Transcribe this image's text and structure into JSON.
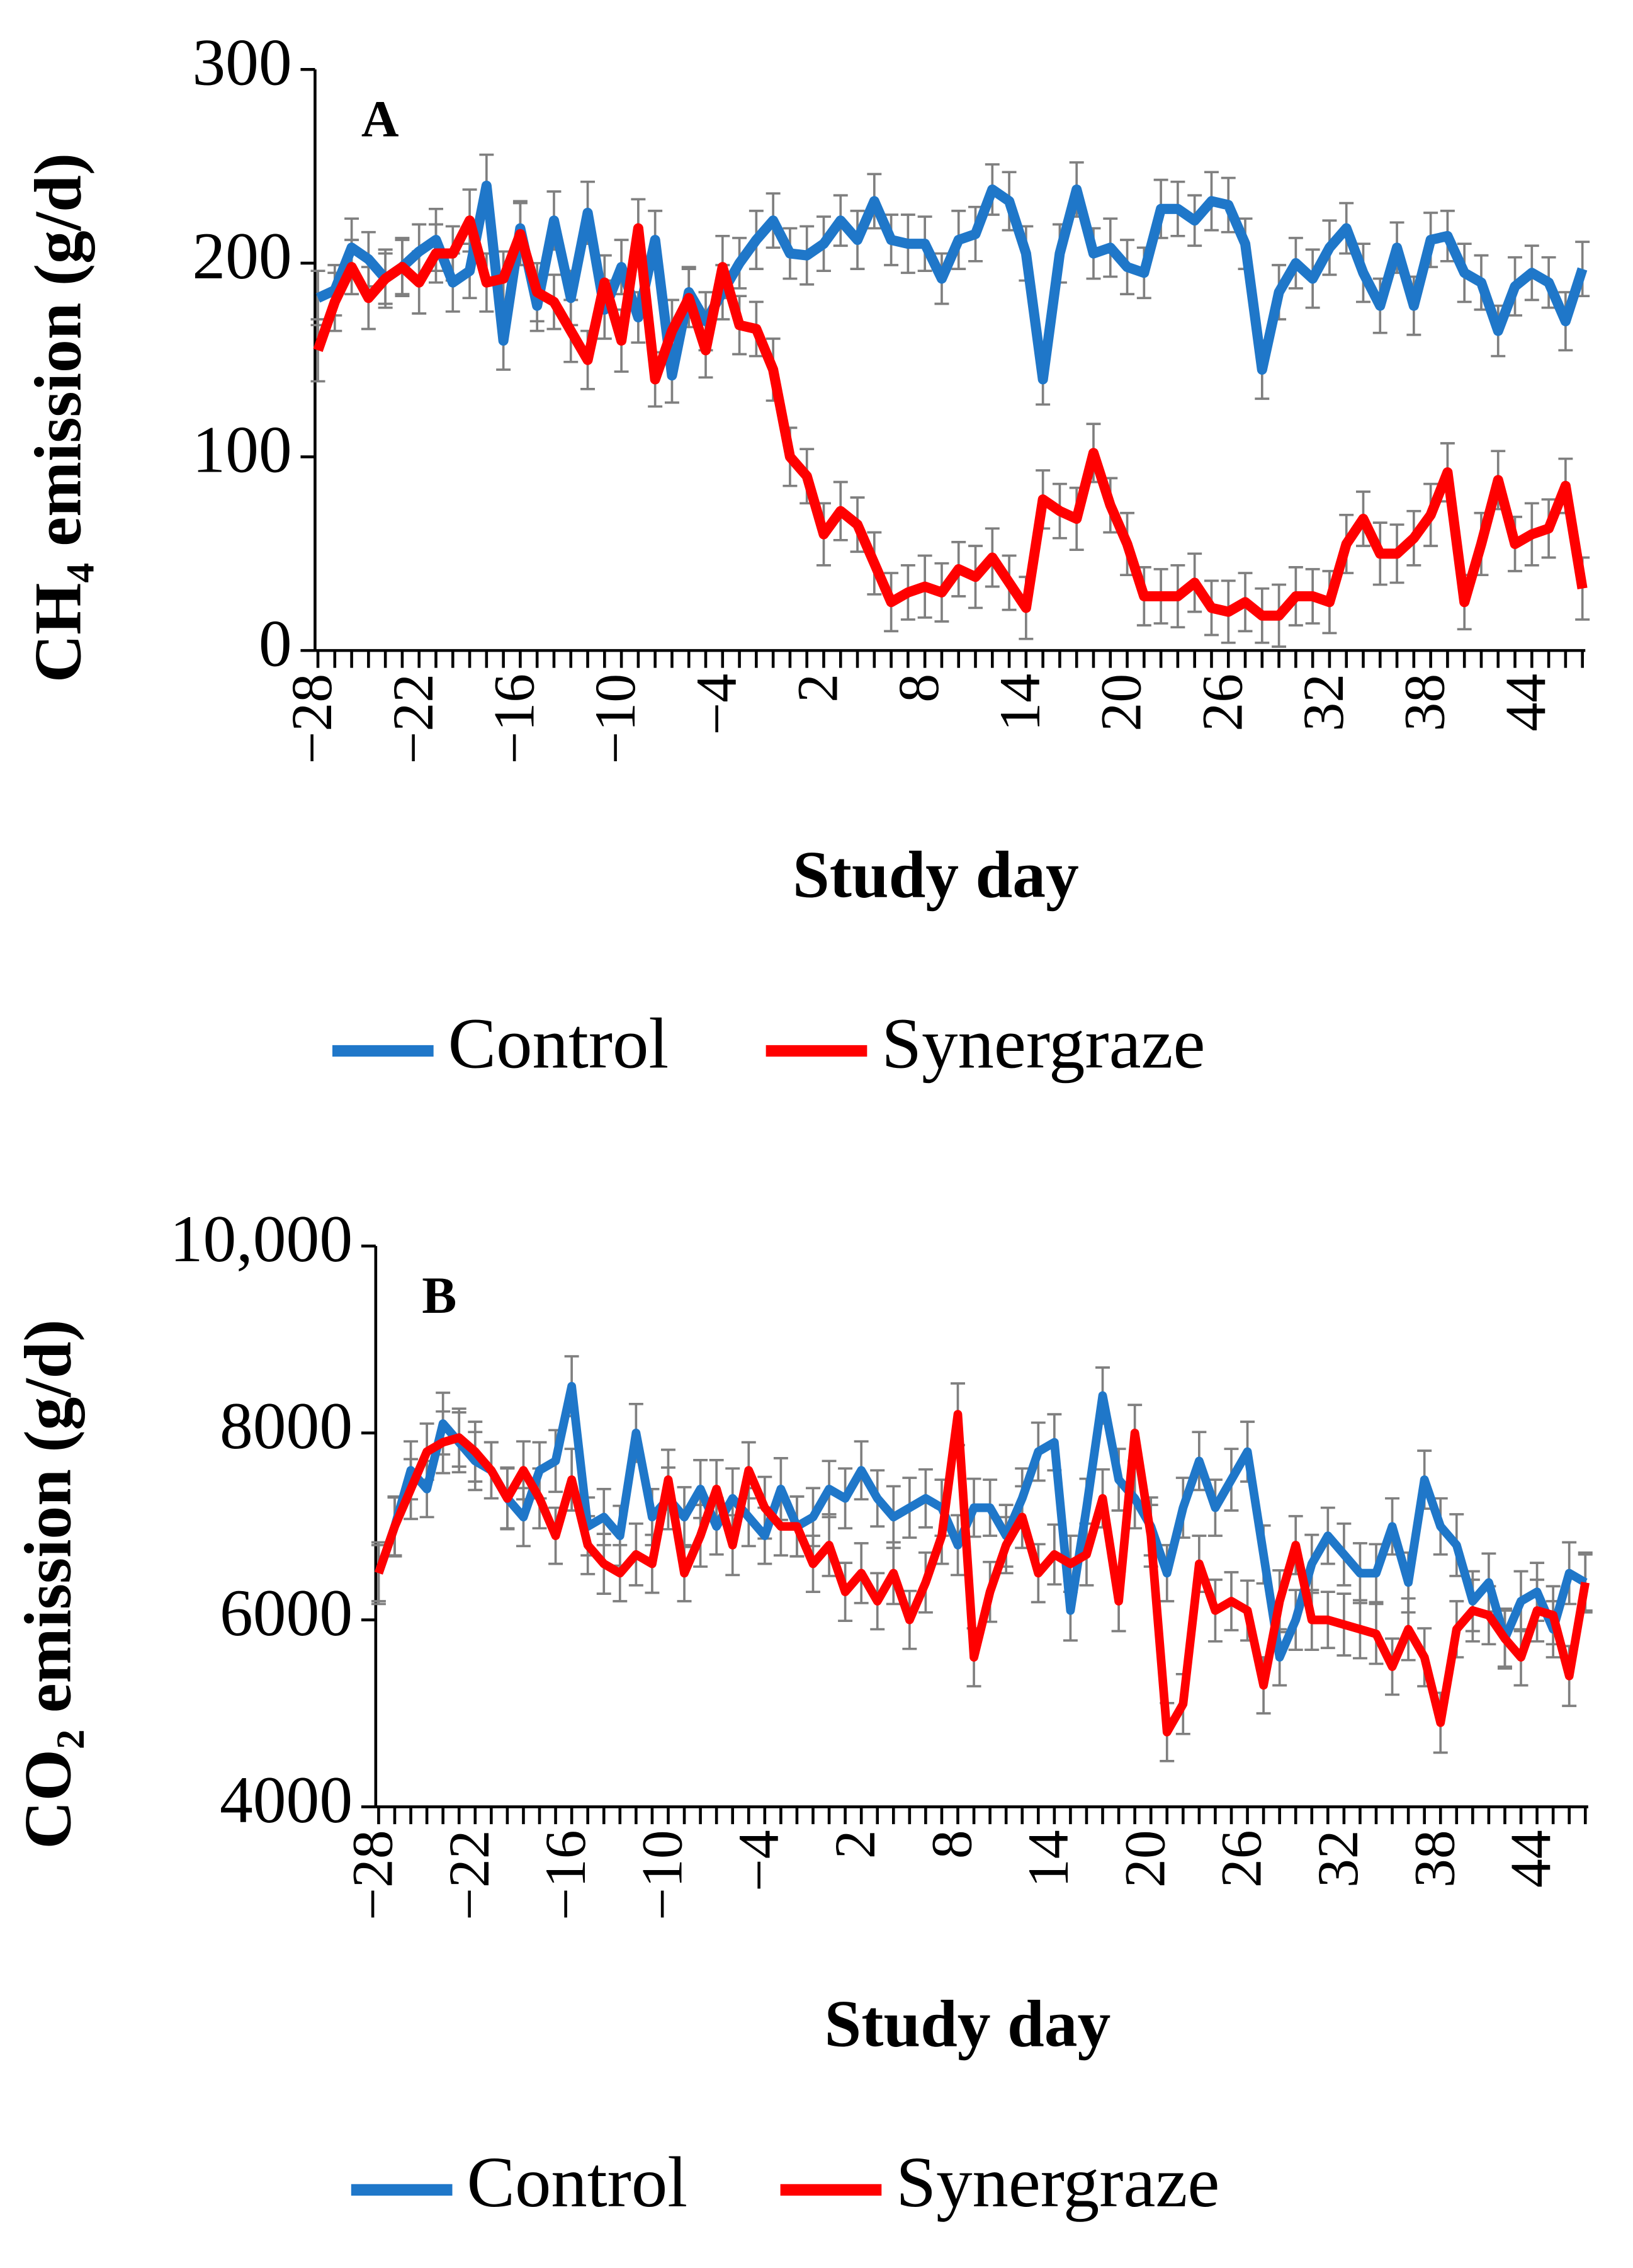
{
  "chart_data": [
    {
      "type": "line",
      "panel_label": "A",
      "ylabel": "CH₄ emission (g/d)",
      "xlabel": "Study day",
      "categories": [
        "−28",
        null,
        null,
        null,
        null,
        null,
        "−22",
        null,
        null,
        null,
        null,
        null,
        "−16",
        null,
        null,
        null,
        null,
        null,
        "−10",
        null,
        null,
        null,
        null,
        null,
        "−4",
        null,
        null,
        null,
        null,
        null,
        "2",
        null,
        null,
        null,
        null,
        null,
        "8",
        null,
        null,
        null,
        null,
        null,
        "14",
        null,
        null,
        null,
        null,
        null,
        "20",
        null,
        null,
        null,
        null,
        null,
        "26",
        null,
        null,
        null,
        null,
        null,
        "32",
        null,
        null,
        null,
        null,
        null,
        "38",
        null,
        null,
        null,
        null,
        null,
        "44",
        null,
        null,
        null
      ],
      "ylim": [
        0,
        300
      ],
      "yticks": [
        0,
        100,
        200,
        300
      ],
      "series": [
        {
          "name": "Control",
          "color": "#1f77c9",
          "values": [
            182,
            186,
            208,
            202,
            192,
            198,
            206,
            212,
            190,
            196,
            240,
            160,
            218,
            178,
            222,
            182,
            226,
            176,
            198,
            172,
            212,
            142,
            185,
            170,
            185,
            200,
            212,
            222,
            205,
            204,
            210,
            222,
            212,
            232,
            212,
            210,
            210,
            192,
            212,
            215,
            238,
            232,
            205,
            140,
            205,
            238,
            205,
            208,
            198,
            195,
            228,
            228,
            222,
            232,
            230,
            210,
            145,
            185,
            200,
            192,
            208,
            218,
            195,
            178,
            208,
            178,
            212,
            214,
            195,
            190,
            165,
            188,
            195,
            190,
            170,
            197
          ],
          "errors": [
            14,
            13,
            15,
            14,
            13,
            15,
            14,
            16,
            15,
            14,
            16,
            15,
            14,
            13,
            15,
            14,
            16,
            15,
            14,
            13,
            15,
            14,
            13,
            15,
            14,
            13,
            15,
            14,
            13,
            15,
            14,
            13,
            15,
            14,
            13,
            15,
            14,
            13,
            15,
            14,
            13,
            15,
            14,
            13,
            15,
            14,
            13,
            15,
            14,
            13,
            15,
            14,
            13,
            15,
            14,
            13,
            15,
            14,
            13,
            15,
            14,
            13,
            15,
            14,
            13,
            15,
            14,
            13,
            15,
            14,
            13,
            15,
            14,
            13,
            15,
            14
          ]
        },
        {
          "name": "Synergraze",
          "color": "#ff0000",
          "values": [
            155,
            180,
            198,
            182,
            192,
            198,
            190,
            205,
            205,
            222,
            190,
            192,
            215,
            185,
            180,
            165,
            150,
            190,
            160,
            218,
            140,
            165,
            182,
            155,
            198,
            168,
            166,
            145,
            100,
            90,
            60,
            72,
            65,
            45,
            25,
            30,
            33,
            30,
            42,
            38,
            48,
            35,
            22,
            78,
            72,
            68,
            102,
            75,
            55,
            28,
            28,
            28,
            35,
            22,
            20,
            25,
            18,
            18,
            28,
            28,
            25,
            55,
            68,
            50,
            50,
            58,
            70,
            92,
            25,
            55,
            88,
            55,
            60,
            63,
            85,
            32
          ],
          "errors": [
            16,
            15,
            14,
            16,
            15,
            14,
            16,
            15,
            14,
            16,
            15,
            14,
            16,
            15,
            14,
            16,
            15,
            14,
            16,
            15,
            14,
            16,
            15,
            14,
            16,
            15,
            14,
            16,
            15,
            14,
            16,
            15,
            14,
            16,
            15,
            14,
            16,
            15,
            14,
            16,
            15,
            14,
            16,
            15,
            14,
            16,
            15,
            14,
            16,
            15,
            14,
            16,
            15,
            14,
            16,
            15,
            14,
            16,
            15,
            14,
            16,
            15,
            14,
            16,
            15,
            14,
            16,
            15,
            14,
            16,
            15,
            14,
            16,
            15,
            14,
            16
          ]
        }
      ],
      "legend": "bottom"
    },
    {
      "type": "line",
      "panel_label": "B",
      "ylabel": "CO₂ emission (g/d)",
      "xlabel": "Study day",
      "categories": [
        "−28",
        null,
        null,
        null,
        null,
        null,
        "−22",
        null,
        null,
        null,
        null,
        null,
        "−16",
        null,
        null,
        null,
        null,
        null,
        "−10",
        null,
        null,
        null,
        null,
        null,
        "−4",
        null,
        null,
        null,
        null,
        null,
        "2",
        null,
        null,
        null,
        null,
        null,
        "8",
        null,
        null,
        null,
        null,
        null,
        "14",
        null,
        null,
        null,
        null,
        null,
        "20",
        null,
        null,
        null,
        null,
        null,
        "26",
        null,
        null,
        null,
        null,
        null,
        "32",
        null,
        null,
        null,
        null,
        null,
        "38",
        null,
        null,
        null,
        null,
        null,
        "44",
        null,
        null,
        null
      ],
      "ylim": [
        4000,
        10000
      ],
      "yticks": [
        4000,
        6000,
        8000,
        {
          "value": 10000,
          "label": "10,000"
        }
      ],
      "series": [
        {
          "name": "Control",
          "color": "#1f77c9",
          "values": [
            6500,
            7000,
            7600,
            7400,
            8100,
            7900,
            7700,
            7600,
            7300,
            7100,
            7600,
            7700,
            8500,
            7000,
            7100,
            6900,
            8000,
            7100,
            7300,
            7100,
            7400,
            7000,
            7300,
            7100,
            6900,
            7400,
            7000,
            7100,
            7400,
            7300,
            7600,
            7300,
            7100,
            7200,
            7300,
            7200,
            6800,
            7200,
            7200,
            6900,
            7300,
            7800,
            7900,
            6100,
            7200,
            8400,
            7500,
            7300,
            7000,
            6500,
            7200,
            7700,
            7200,
            7500,
            7800,
            6700,
            5600,
            6000,
            6600,
            6900,
            6700,
            6500,
            6500,
            7000,
            6400,
            7500,
            7000,
            6800,
            6200,
            6400,
            5800,
            6200,
            6300,
            5900,
            6500,
            6400
          ],
          "errors": [
            300,
            320,
            310,
            300,
            330,
            320,
            310,
            300,
            320,
            310,
            300,
            330,
            320,
            310,
            300,
            320,
            310,
            300,
            330,
            320,
            310,
            300,
            320,
            310,
            300,
            330,
            320,
            310,
            300,
            320,
            310,
            300,
            330,
            320,
            310,
            300,
            320,
            310,
            300,
            330,
            320,
            310,
            300,
            320,
            310,
            300,
            330,
            320,
            310,
            300,
            320,
            310,
            300,
            330,
            320,
            310,
            300,
            320,
            310,
            300,
            330,
            320,
            310,
            300,
            320,
            310,
            300,
            330,
            320,
            310,
            300,
            320,
            310,
            300,
            330,
            320
          ]
        },
        {
          "name": "Synergraze",
          "color": "#ff0000",
          "values": [
            6500,
            7000,
            7400,
            7800,
            7900,
            7950,
            7800,
            7600,
            7300,
            7600,
            7300,
            6900,
            7500,
            6800,
            6600,
            6500,
            6700,
            6600,
            7500,
            6500,
            6900,
            7400,
            6800,
            7600,
            7200,
            7000,
            7000,
            6600,
            6800,
            6300,
            6500,
            6200,
            6500,
            6000,
            6400,
            6900,
            8200,
            5600,
            6300,
            6800,
            7100,
            6500,
            6700,
            6600,
            6700,
            7300,
            6200,
            8000,
            6900,
            4800,
            5100,
            6600,
            6100,
            6200,
            6100,
            5300,
            6200,
            6800,
            6000,
            6000,
            5950,
            5900,
            5850,
            5500,
            5900,
            5600,
            4900,
            5900,
            6100,
            6050,
            5800,
            5600,
            6100,
            6050,
            5400,
            6400
          ],
          "errors": [
            330,
            310,
            320,
            300,
            330,
            310,
            320,
            300,
            330,
            310,
            320,
            300,
            330,
            310,
            320,
            300,
            330,
            310,
            320,
            300,
            330,
            310,
            320,
            300,
            330,
            310,
            320,
            300,
            330,
            310,
            320,
            300,
            330,
            310,
            320,
            300,
            330,
            310,
            320,
            300,
            330,
            310,
            320,
            300,
            330,
            310,
            320,
            300,
            330,
            310,
            320,
            300,
            330,
            310,
            320,
            300,
            330,
            310,
            320,
            300,
            330,
            310,
            320,
            300,
            330,
            310,
            320,
            300,
            330,
            310,
            320,
            300,
            330,
            310,
            320,
            300
          ]
        }
      ],
      "legend": "bottom"
    }
  ]
}
